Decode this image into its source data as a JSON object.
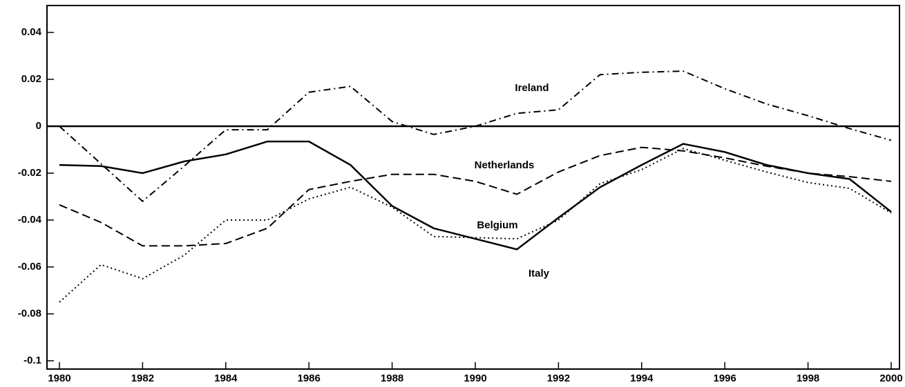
{
  "chart_data": {
    "type": "line",
    "x": [
      1980,
      1981,
      1982,
      1983,
      1984,
      1985,
      1986,
      1987,
      1988,
      1989,
      1990,
      1991,
      1992,
      1993,
      1994,
      1995,
      1996,
      1997,
      1998,
      1999,
      2000
    ],
    "series": [
      {
        "name": "Italy",
        "color": "#000000",
        "dash": "solid",
        "values": [
          -0.0165,
          -0.017,
          -0.02,
          -0.015,
          -0.012,
          -0.0065,
          -0.0065,
          -0.0165,
          -0.034,
          -0.0435,
          -0.048,
          -0.0525,
          -0.039,
          -0.026,
          -0.0165,
          -0.0075,
          -0.011,
          -0.0165,
          -0.02,
          -0.0225,
          -0.0365
        ]
      },
      {
        "name": "Ireland",
        "color": "#000000",
        "dash": "dashdot",
        "values": [
          0,
          -0.016,
          -0.032,
          -0.017,
          -0.0015,
          -0.0015,
          0.0145,
          0.017,
          0.002,
          -0.0035,
          0,
          0.0055,
          0.007,
          0.022,
          0.023,
          0.0235,
          0.016,
          0.0095,
          0.0045,
          -0.001,
          -0.006
        ]
      },
      {
        "name": "Netherlands",
        "color": "#000000",
        "dash": "dashed",
        "values": [
          -0.0335,
          -0.041,
          -0.051,
          -0.051,
          -0.05,
          -0.0435,
          -0.027,
          -0.0235,
          -0.0205,
          -0.0205,
          -0.0235,
          -0.029,
          -0.0195,
          -0.0125,
          -0.009,
          -0.0105,
          -0.0135,
          -0.017,
          -0.02,
          -0.0215,
          -0.0235
        ]
      },
      {
        "name": "Belgium",
        "color": "#000000",
        "dash": "dotted",
        "values": [
          -0.075,
          -0.059,
          -0.065,
          -0.055,
          -0.04,
          -0.04,
          -0.031,
          -0.026,
          -0.0345,
          -0.047,
          -0.0475,
          -0.048,
          -0.04,
          -0.0245,
          -0.0185,
          -0.0095,
          -0.0145,
          -0.0195,
          -0.024,
          -0.0265,
          -0.037
        ]
      }
    ],
    "xlim": [
      1980,
      2000
    ],
    "xticks": [
      1980,
      1982,
      1984,
      1986,
      1988,
      1990,
      1992,
      1994,
      1996,
      1998,
      2000
    ],
    "ylim": [
      -0.1,
      0.05
    ],
    "yticks": [
      -0.1,
      -0.08,
      -0.06,
      -0.04,
      -0.02,
      0,
      0.02,
      0.04
    ]
  }
}
